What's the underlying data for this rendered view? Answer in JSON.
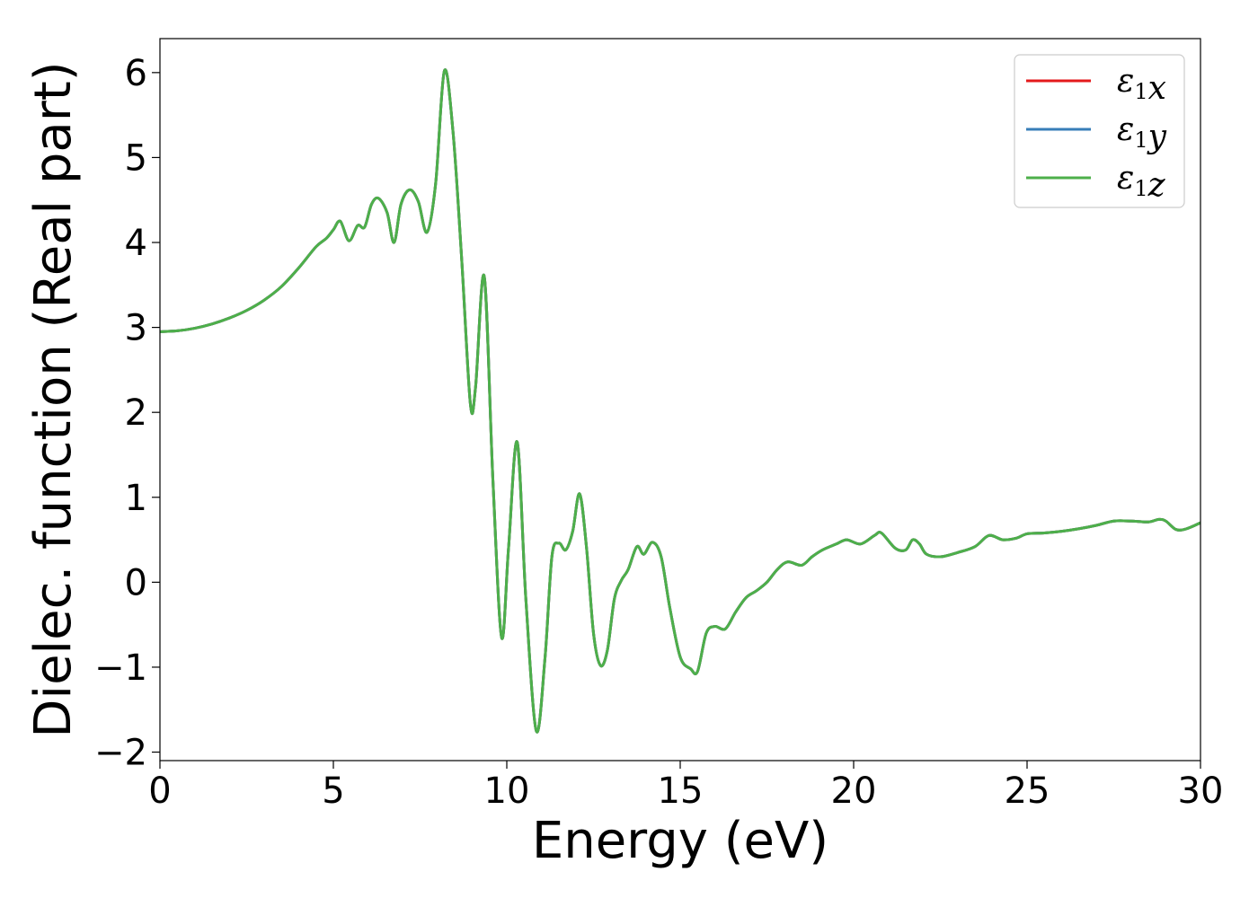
{
  "chart_data": {
    "type": "line",
    "title": "",
    "xlabel": "Energy (eV)",
    "ylabel": "Dielec. function (Real part)",
    "xlim": [
      0,
      30
    ],
    "ylim": [
      -2.1,
      6.4
    ],
    "xticks": [
      0,
      5,
      10,
      15,
      20,
      25,
      30
    ],
    "xtick_labels": [
      "0",
      "5",
      "10",
      "15",
      "20",
      "25",
      "30"
    ],
    "yticks": [
      -2,
      -1,
      0,
      1,
      2,
      3,
      4,
      5,
      6
    ],
    "ytick_labels": [
      "−2",
      "−1",
      "0",
      "1",
      "2",
      "3",
      "4",
      "5",
      "6"
    ],
    "grid": false,
    "legend_position": "top-right",
    "x": [
      0,
      0.5,
      1,
      1.5,
      2,
      2.5,
      3,
      3.5,
      4,
      4.5,
      4.8,
      5,
      5.2,
      5.45,
      5.7,
      5.9,
      6.1,
      6.3,
      6.55,
      6.75,
      6.95,
      7.2,
      7.45,
      7.7,
      7.95,
      8.2,
      8.45,
      8.7,
      8.95,
      9.1,
      9.35,
      9.6,
      9.85,
      10.05,
      10.3,
      10.55,
      10.85,
      11.1,
      11.3,
      11.5,
      11.7,
      11.9,
      12.1,
      12.3,
      12.5,
      12.7,
      12.9,
      13.1,
      13.3,
      13.5,
      13.75,
      13.95,
      14.2,
      14.45,
      14.7,
      15.0,
      15.3,
      15.5,
      15.75,
      16.0,
      16.3,
      16.6,
      16.9,
      17.2,
      17.5,
      17.8,
      18.1,
      18.5,
      18.8,
      19.1,
      19.5,
      19.8,
      20.2,
      20.6,
      20.8,
      21.2,
      21.5,
      21.7,
      21.9,
      22.1,
      22.5,
      23.0,
      23.5,
      23.9,
      24.3,
      24.7,
      25.0,
      25.5,
      26.0,
      26.5,
      27.0,
      27.5,
      28.0,
      28.5,
      28.8,
      29.0,
      29.3,
      29.6,
      30.0
    ],
    "series": [
      {
        "name": "ε₁x",
        "color": "#e41a1c",
        "values": [
          2.95,
          2.96,
          2.99,
          3.04,
          3.11,
          3.2,
          3.32,
          3.48,
          3.7,
          3.95,
          4.05,
          4.15,
          4.25,
          4.02,
          4.2,
          4.18,
          4.45,
          4.52,
          4.35,
          4.0,
          4.45,
          4.62,
          4.48,
          4.12,
          4.7,
          6.02,
          5.3,
          3.8,
          2.1,
          2.3,
          3.6,
          1.2,
          -0.65,
          0.4,
          1.65,
          -0.2,
          -1.75,
          -0.9,
          0.3,
          0.46,
          0.38,
          0.6,
          1.04,
          0.4,
          -0.6,
          -0.98,
          -0.8,
          -0.2,
          0.02,
          0.15,
          0.42,
          0.33,
          0.47,
          0.3,
          -0.3,
          -0.88,
          -1.02,
          -1.05,
          -0.6,
          -0.52,
          -0.55,
          -0.35,
          -0.18,
          -0.1,
          0.0,
          0.15,
          0.24,
          0.2,
          0.3,
          0.38,
          0.45,
          0.5,
          0.45,
          0.55,
          0.58,
          0.4,
          0.38,
          0.5,
          0.45,
          0.33,
          0.3,
          0.35,
          0.42,
          0.55,
          0.5,
          0.52,
          0.57,
          0.58,
          0.6,
          0.63,
          0.67,
          0.72,
          0.72,
          0.71,
          0.74,
          0.72,
          0.62,
          0.63,
          0.7
        ]
      },
      {
        "name": "ε₁y",
        "color": "#377eb8",
        "values": [
          2.95,
          2.96,
          2.99,
          3.04,
          3.11,
          3.2,
          3.32,
          3.48,
          3.7,
          3.95,
          4.05,
          4.15,
          4.25,
          4.02,
          4.2,
          4.18,
          4.45,
          4.52,
          4.35,
          4.0,
          4.45,
          4.62,
          4.48,
          4.12,
          4.7,
          6.02,
          5.3,
          3.8,
          2.1,
          2.3,
          3.6,
          1.2,
          -0.65,
          0.4,
          1.65,
          -0.2,
          -1.75,
          -0.9,
          0.3,
          0.46,
          0.38,
          0.6,
          1.04,
          0.4,
          -0.6,
          -0.98,
          -0.8,
          -0.2,
          0.02,
          0.15,
          0.42,
          0.33,
          0.47,
          0.3,
          -0.3,
          -0.88,
          -1.02,
          -1.05,
          -0.6,
          -0.52,
          -0.55,
          -0.35,
          -0.18,
          -0.1,
          0.0,
          0.15,
          0.24,
          0.2,
          0.3,
          0.38,
          0.45,
          0.5,
          0.45,
          0.55,
          0.58,
          0.4,
          0.38,
          0.5,
          0.45,
          0.33,
          0.3,
          0.35,
          0.42,
          0.55,
          0.5,
          0.52,
          0.57,
          0.58,
          0.6,
          0.63,
          0.67,
          0.72,
          0.72,
          0.71,
          0.74,
          0.72,
          0.62,
          0.63,
          0.7
        ]
      },
      {
        "name": "ε₁z",
        "color": "#4daf4a",
        "values": [
          2.95,
          2.96,
          2.99,
          3.04,
          3.11,
          3.2,
          3.32,
          3.48,
          3.7,
          3.95,
          4.05,
          4.15,
          4.25,
          4.02,
          4.2,
          4.18,
          4.45,
          4.52,
          4.35,
          4.0,
          4.45,
          4.62,
          4.48,
          4.12,
          4.7,
          6.02,
          5.3,
          3.8,
          2.1,
          2.3,
          3.6,
          1.2,
          -0.65,
          0.4,
          1.65,
          -0.2,
          -1.75,
          -0.9,
          0.3,
          0.46,
          0.38,
          0.6,
          1.04,
          0.4,
          -0.6,
          -0.98,
          -0.8,
          -0.2,
          0.02,
          0.15,
          0.42,
          0.33,
          0.47,
          0.3,
          -0.3,
          -0.88,
          -1.02,
          -1.05,
          -0.6,
          -0.52,
          -0.55,
          -0.35,
          -0.18,
          -0.1,
          0.0,
          0.15,
          0.24,
          0.2,
          0.3,
          0.38,
          0.45,
          0.5,
          0.45,
          0.55,
          0.58,
          0.4,
          0.38,
          0.5,
          0.45,
          0.33,
          0.3,
          0.35,
          0.42,
          0.55,
          0.5,
          0.52,
          0.57,
          0.58,
          0.6,
          0.63,
          0.67,
          0.72,
          0.72,
          0.71,
          0.74,
          0.72,
          0.62,
          0.63,
          0.7
        ]
      }
    ]
  }
}
